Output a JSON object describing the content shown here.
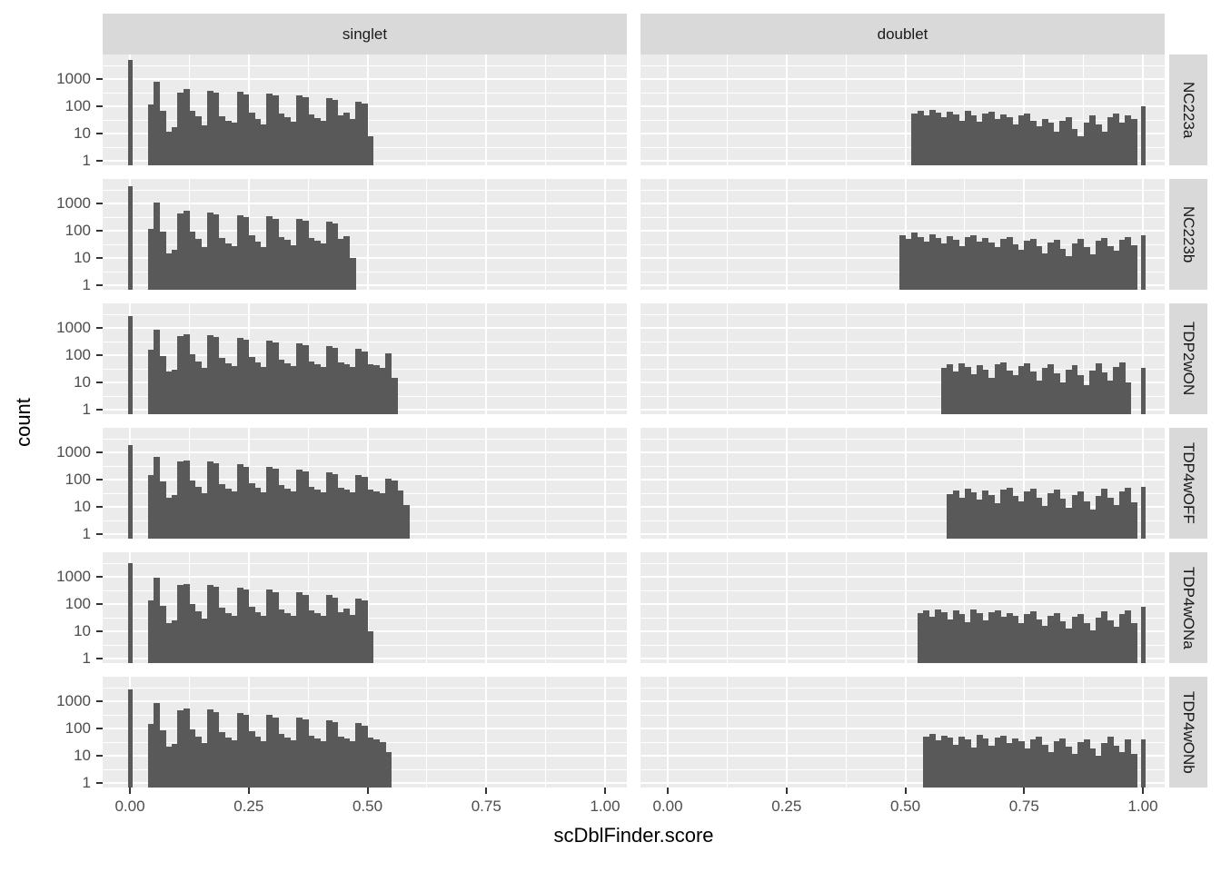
{
  "figure": {
    "y_axis_title": "count",
    "x_axis_title": "scDblFinder.score",
    "column_labels": [
      "singlet",
      "doublet"
    ],
    "row_labels": [
      "NC223a",
      "NC223b",
      "TDP2wON",
      "TDP4wOFF",
      "TDP4wONa",
      "TDP4wONb"
    ],
    "y_tick_labels": [
      "1000",
      "100",
      "10",
      "1"
    ],
    "x_tick_labels": [
      "0.00",
      "0.25",
      "0.50",
      "0.75",
      "1.00"
    ]
  },
  "colors": {
    "bar": "#595959",
    "panel_background": "#EBEBEB",
    "strip_background": "#D9D9D9",
    "gridline": "#FFFFFF",
    "tick_label": "#4D4D4D",
    "tick_mark": "#333333",
    "strip_text": "#1A1A1A",
    "title_text": "#000000"
  },
  "chart_data": {
    "type": "bar",
    "subtype": "faceted_histogram",
    "title": "",
    "xlabel": "scDblFinder.score",
    "ylabel": "count",
    "y_scale": "log10",
    "x_range": [
      0,
      1
    ],
    "x_tick_values": [
      0,
      0.25,
      0.5,
      0.75,
      1.0
    ],
    "y_tick_values": [
      1,
      10,
      100,
      1000
    ],
    "bin_width": 0.0125,
    "grid": "on",
    "legend": "none",
    "facet_columns": [
      "singlet",
      "doublet"
    ],
    "facet_rows": [
      "NC223a",
      "NC223b",
      "TDP2wON",
      "TDP4wOFF",
      "TDP4wONa",
      "TDP4wONb"
    ],
    "panels": [
      {
        "sample": "NC223a",
        "class": "singlet",
        "spike_score": 0.0,
        "spike_count": 5000,
        "bin_start": 0.0375,
        "counts": [
          115,
          790,
          68,
          12,
          17,
          316,
          430,
          68,
          43,
          20,
          370,
          316,
          43,
          30,
          25,
          340,
          280,
          60,
          35,
          22,
          300,
          250,
          55,
          40,
          28,
          260,
          220,
          50,
          38,
          30,
          200,
          170,
          45,
          60,
          35,
          150,
          130,
          8
        ]
      },
      {
        "sample": "NC223a",
        "class": "doublet",
        "spike_score": 1.0,
        "spike_count": 100,
        "bin_start": 0.5125,
        "counts": [
          55,
          70,
          48,
          75,
          60,
          40,
          65,
          50,
          30,
          70,
          45,
          28,
          55,
          62,
          35,
          50,
          40,
          22,
          45,
          55,
          30,
          18,
          35,
          25,
          12,
          30,
          40,
          15,
          8,
          25,
          48,
          22,
          12,
          40,
          55,
          25,
          45,
          35
        ]
      },
      {
        "sample": "NC223b",
        "class": "singlet",
        "spike_score": 0.0,
        "spike_count": 4300,
        "bin_start": 0.0375,
        "counts": [
          120,
          1070,
          90,
          15,
          20,
          420,
          560,
          90,
          50,
          25,
          480,
          400,
          55,
          35,
          28,
          380,
          310,
          70,
          40,
          25,
          330,
          270,
          60,
          45,
          30,
          280,
          230,
          55,
          42,
          33,
          220,
          180,
          50,
          65,
          10
        ]
      },
      {
        "sample": "NC223b",
        "class": "doublet",
        "spike_score": 1.0,
        "spike_count": 70,
        "bin_start": 0.4875,
        "counts": [
          70,
          50,
          85,
          60,
          40,
          75,
          55,
          35,
          65,
          45,
          28,
          60,
          70,
          40,
          55,
          38,
          25,
          50,
          60,
          32,
          20,
          42,
          52,
          28,
          15,
          38,
          48,
          22,
          12,
          35,
          50,
          25,
          14,
          42,
          55,
          28,
          18,
          45,
          60,
          30
        ]
      },
      {
        "sample": "TDP2wON",
        "class": "singlet",
        "spike_score": 0.0,
        "spike_count": 2700,
        "bin_start": 0.0375,
        "counts": [
          160,
          860,
          95,
          25,
          30,
          520,
          590,
          110,
          60,
          35,
          560,
          470,
          80,
          50,
          40,
          430,
          360,
          85,
          55,
          38,
          350,
          290,
          70,
          50,
          40,
          280,
          230,
          60,
          48,
          38,
          220,
          180,
          55,
          45,
          36,
          170,
          140,
          48,
          42,
          34,
          120,
          15
        ]
      },
      {
        "sample": "TDP2wON",
        "class": "doublet",
        "spike_score": 1.0,
        "spike_count": 35,
        "bin_start": 0.575,
        "counts": [
          35,
          45,
          25,
          50,
          38,
          20,
          42,
          30,
          15,
          45,
          55,
          28,
          18,
          40,
          50,
          25,
          12,
          35,
          45,
          22,
          10,
          30,
          42,
          18,
          8,
          28,
          50,
          24,
          12,
          38,
          55,
          10
        ]
      },
      {
        "sample": "TDP4wOFF",
        "class": "singlet",
        "spike_score": 0.0,
        "spike_count": 1900,
        "bin_start": 0.0375,
        "counts": [
          150,
          700,
          85,
          22,
          28,
          450,
          500,
          95,
          55,
          32,
          470,
          390,
          70,
          45,
          36,
          360,
          300,
          75,
          50,
          34,
          300,
          250,
          62,
          46,
          36,
          240,
          200,
          55,
          44,
          35,
          190,
          160,
          50,
          42,
          33,
          150,
          125,
          44,
          38,
          31,
          110,
          95,
          40,
          12
        ]
      },
      {
        "sample": "TDP4wOFF",
        "class": "doublet",
        "spike_score": 1.0,
        "spike_count": 55,
        "bin_start": 0.5875,
        "counts": [
          30,
          40,
          22,
          45,
          35,
          18,
          40,
          28,
          14,
          42,
          50,
          26,
          16,
          38,
          46,
          22,
          11,
          32,
          42,
          20,
          9,
          28,
          38,
          16,
          8,
          26,
          45,
          22,
          12,
          36,
          50,
          15
        ]
      },
      {
        "sample": "TDP4wONa",
        "class": "singlet",
        "spike_score": 0.0,
        "spike_count": 3200,
        "bin_start": 0.0375,
        "counts": [
          140,
          900,
          88,
          20,
          26,
          500,
          560,
          100,
          55,
          30,
          520,
          430,
          75,
          48,
          38,
          400,
          330,
          80,
          52,
          36,
          330,
          270,
          65,
          48,
          38,
          270,
          220,
          58,
          46,
          36,
          210,
          175,
          52,
          70,
          40,
          160,
          135,
          10
        ]
      },
      {
        "sample": "TDP4wONa",
        "class": "doublet",
        "spike_score": 1.0,
        "spike_count": 80,
        "bin_start": 0.525,
        "counts": [
          45,
          60,
          35,
          65,
          50,
          28,
          58,
          42,
          22,
          62,
          48,
          26,
          52,
          60,
          34,
          48,
          36,
          20,
          44,
          54,
          28,
          16,
          38,
          48,
          24,
          13,
          34,
          44,
          20,
          11,
          32,
          55,
          26,
          15,
          44,
          60,
          20
        ]
      },
      {
        "sample": "TDP4wONb",
        "class": "singlet",
        "spike_score": 0.0,
        "spike_count": 2800,
        "bin_start": 0.0375,
        "counts": [
          145,
          850,
          86,
          21,
          27,
          480,
          540,
          95,
          52,
          30,
          500,
          410,
          72,
          46,
          37,
          380,
          315,
          78,
          50,
          35,
          310,
          260,
          62,
          46,
          37,
          250,
          210,
          56,
          44,
          35,
          200,
          165,
          50,
          42,
          34,
          155,
          130,
          46,
          40,
          32,
          14
        ]
      },
      {
        "sample": "TDP4wONb",
        "class": "doublet",
        "spike_score": 1.0,
        "spike_count": 40,
        "bin_start": 0.5375,
        "counts": [
          50,
          65,
          38,
          55,
          45,
          25,
          52,
          40,
          20,
          58,
          44,
          24,
          48,
          55,
          30,
          44,
          34,
          18,
          40,
          50,
          26,
          14,
          35,
          44,
          22,
          12,
          32,
          40,
          18,
          10,
          30,
          52,
          24,
          14,
          40,
          12
        ]
      }
    ]
  }
}
